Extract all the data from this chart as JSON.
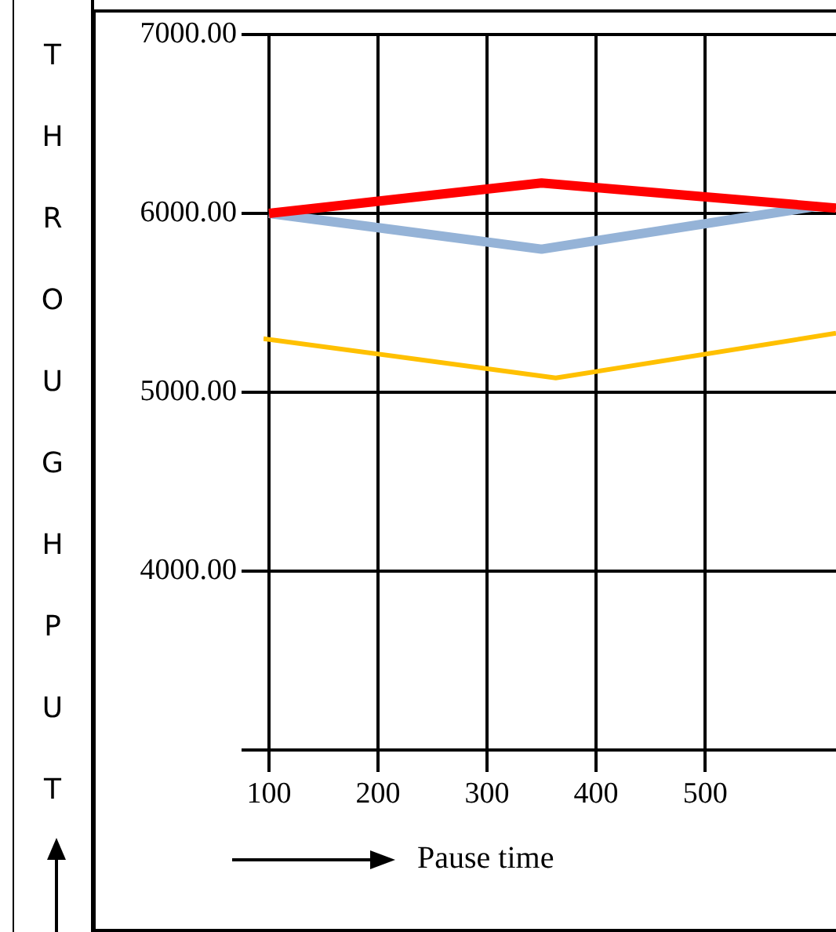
{
  "chart_data": {
    "type": "line",
    "xlabel": "Pause time",
    "ylabel": "THROUGHPUT",
    "xlim": [
      95,
      620
    ],
    "xticks": [
      100,
      200,
      300,
      400,
      500
    ],
    "ylim": [
      3000,
      7000
    ],
    "yticks": [
      {
        "value": 3000,
        "label": null
      },
      {
        "value": 4000,
        "label": "4000.00"
      },
      {
        "value": 5000,
        "label": "5000.00"
      },
      {
        "value": 6000,
        "label": "6000.00"
      },
      {
        "value": 7000,
        "label": "7000.00"
      }
    ],
    "grid": true,
    "marker": "none",
    "line_style": "solid",
    "series": [
      {
        "color": "#ff0000",
        "x": [
          100,
          350,
          620
        ],
        "values": [
          6000,
          6170,
          6030
        ]
      },
      {
        "color": "#95b3d7",
        "x": [
          100,
          350,
          603
        ],
        "values": [
          6000,
          5800,
          6040
        ]
      },
      {
        "color": "#ffc000",
        "x": [
          95,
          363,
          620
        ],
        "values": [
          5300,
          5080,
          5330
        ]
      }
    ]
  }
}
